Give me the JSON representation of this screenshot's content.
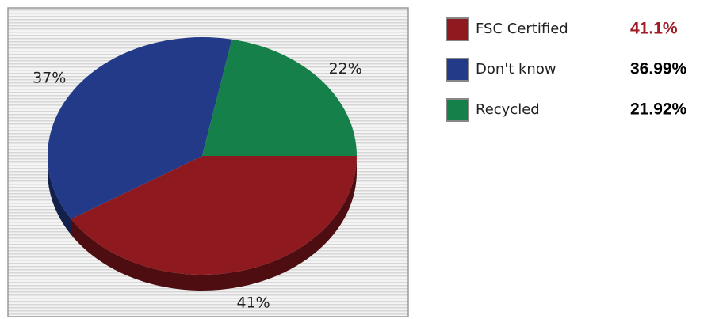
{
  "chart_data": {
    "type": "pie",
    "categories": [
      "FSC Certified",
      "Don't know",
      "Recycled"
    ],
    "values": [
      41.1,
      36.99,
      21.92
    ],
    "value_labels": [
      "41%",
      "37%",
      "22%"
    ],
    "legend_labels": [
      "41.1%",
      "36.99%",
      "21.92%"
    ],
    "colors": [
      "#8e1a1f",
      "#233a88",
      "#15804a"
    ],
    "legend_value_colors": [
      "#a01c24",
      "#000000",
      "#000000"
    ],
    "legend": "right"
  }
}
